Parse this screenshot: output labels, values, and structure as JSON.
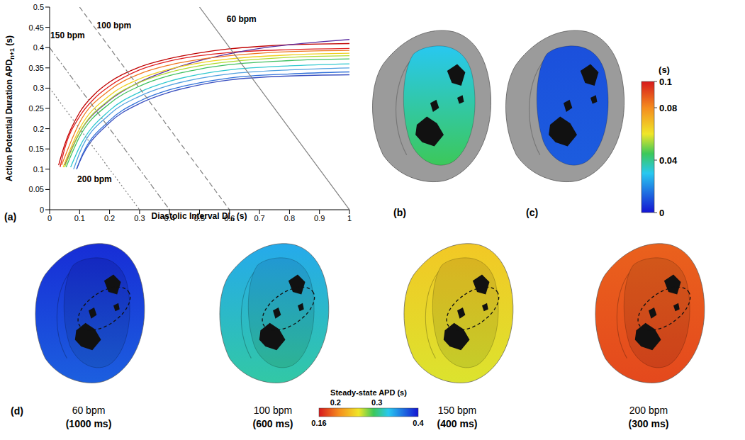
{
  "chart_data": {
    "type": "line",
    "xlabel": {
      "text": "Diastolic Interval DI",
      "sub": "n",
      "after": " (s)"
    },
    "ylabel": {
      "text": "Action Potential Duration APD",
      "sub": "n+1",
      "after": " (s)"
    },
    "xlim": [
      0,
      1
    ],
    "xticks": [
      0,
      0.1,
      0.2,
      0.3,
      0.4,
      0.5,
      0.6,
      0.7,
      0.8,
      0.9,
      1
    ],
    "ylim": [
      0,
      0.5
    ],
    "yticks": [
      0,
      0.05,
      0.1,
      0.15,
      0.2,
      0.25,
      0.3,
      0.35,
      0.4,
      0.45,
      0.5
    ],
    "grid": false,
    "series": [
      {
        "color": "#c00000",
        "line_style": "solid",
        "x": [
          0.03,
          0.05,
          0.1,
          0.15,
          0.2,
          0.3,
          0.4,
          0.5,
          0.6,
          0.7,
          0.8,
          0.9,
          1
        ],
        "values": [
          0.11,
          0.16,
          0.24,
          0.285,
          0.315,
          0.352,
          0.373,
          0.387,
          0.397,
          0.403,
          0.407,
          0.409,
          0.41
        ]
      },
      {
        "color": "#e02020",
        "line_style": "solid",
        "x": [
          0.035,
          0.05,
          0.1,
          0.15,
          0.2,
          0.3,
          0.4,
          0.5,
          0.6,
          0.8,
          1
        ],
        "values": [
          0.105,
          0.15,
          0.23,
          0.275,
          0.305,
          0.345,
          0.367,
          0.38,
          0.388,
          0.395,
          0.398
        ]
      },
      {
        "color": "#5a2ca0",
        "line_style": "solid",
        "x": [
          0.05,
          0.1,
          0.2,
          0.3,
          0.4,
          0.5,
          0.6,
          0.7,
          0.8,
          0.9,
          1
        ],
        "values": [
          0.11,
          0.19,
          0.27,
          0.315,
          0.345,
          0.368,
          0.385,
          0.398,
          0.407,
          0.414,
          0.42
        ]
      },
      {
        "color": "#f07820",
        "line_style": "solid",
        "x": [
          0.04,
          0.1,
          0.2,
          0.3,
          0.4,
          0.5,
          0.6,
          0.8,
          1
        ],
        "values": [
          0.11,
          0.215,
          0.295,
          0.335,
          0.357,
          0.371,
          0.38,
          0.39,
          0.393
        ]
      },
      {
        "color": "#f0d020",
        "line_style": "solid",
        "x": [
          0.045,
          0.1,
          0.2,
          0.3,
          0.4,
          0.5,
          0.6,
          0.8,
          1
        ],
        "values": [
          0.105,
          0.2,
          0.282,
          0.323,
          0.347,
          0.362,
          0.372,
          0.382,
          0.386
        ]
      },
      {
        "color": "#b0dc30",
        "line_style": "solid",
        "x": [
          0.05,
          0.1,
          0.2,
          0.3,
          0.4,
          0.5,
          0.6,
          0.8,
          1
        ],
        "values": [
          0.105,
          0.19,
          0.272,
          0.314,
          0.339,
          0.355,
          0.365,
          0.376,
          0.38
        ]
      },
      {
        "color": "#40c060",
        "line_style": "solid",
        "x": [
          0.055,
          0.1,
          0.2,
          0.3,
          0.4,
          0.5,
          0.6,
          0.8,
          1
        ],
        "values": [
          0.105,
          0.18,
          0.262,
          0.305,
          0.331,
          0.347,
          0.358,
          0.368,
          0.372
        ]
      },
      {
        "color": "#30c8d0",
        "line_style": "solid",
        "x": [
          0.07,
          0.1,
          0.2,
          0.3,
          0.4,
          0.5,
          0.6,
          0.8,
          1
        ],
        "values": [
          0.105,
          0.155,
          0.245,
          0.29,
          0.317,
          0.334,
          0.345,
          0.355,
          0.36
        ]
      },
      {
        "color": "#50a0e0",
        "line_style": "solid",
        "x": [
          0.08,
          0.1,
          0.2,
          0.3,
          0.4,
          0.5,
          0.6,
          0.8,
          1
        ],
        "values": [
          0.1,
          0.14,
          0.235,
          0.28,
          0.307,
          0.324,
          0.335,
          0.345,
          0.35
        ]
      },
      {
        "color": "#3070d8",
        "line_style": "solid",
        "x": [
          0.09,
          0.1,
          0.2,
          0.3,
          0.4,
          0.5,
          0.6,
          0.8,
          1
        ],
        "values": [
          0.1,
          0.12,
          0.22,
          0.268,
          0.296,
          0.313,
          0.325,
          0.335,
          0.34
        ]
      },
      {
        "color": "#3a50c0",
        "line_style": "solid",
        "x": [
          0.09,
          0.1,
          0.2,
          0.3,
          0.4,
          0.5,
          0.6,
          0.8,
          1
        ],
        "values": [
          0.1,
          0.118,
          0.215,
          0.262,
          0.29,
          0.308,
          0.32,
          0.33,
          0.333
        ]
      },
      {
        "color": "#7f7f7f",
        "line_style": "dotted",
        "x": [
          0,
          0.3
        ],
        "values": [
          0.3,
          0
        ]
      },
      {
        "color": "#7f7f7f",
        "line_style": "dashdot",
        "x": [
          0,
          0.4
        ],
        "values": [
          0.4,
          0
        ]
      },
      {
        "color": "#7f7f7f",
        "line_style": "dashed",
        "x": [
          0.1,
          0.6
        ],
        "values": [
          0.5,
          0
        ]
      },
      {
        "color": "#7f7f7f",
        "line_style": "solid",
        "x": [
          0.5,
          1
        ],
        "values": [
          0.5,
          0
        ]
      }
    ],
    "annotations": [
      {
        "text": "60 bpm",
        "x": 0.64,
        "y": 0.47
      },
      {
        "text": "100 bpm",
        "x": 0.215,
        "y": 0.455
      },
      {
        "text": "150 bpm",
        "x": 0.06,
        "y": 0.43
      },
      {
        "text": "200 bpm",
        "x": 0.15,
        "y": 0.075
      }
    ]
  },
  "panels": {
    "a": {
      "label": "(a)"
    },
    "b": {
      "label": "(b)",
      "values": [
        0.03,
        0.045
      ]
    },
    "c": {
      "label": "(c)",
      "values": [
        0.01,
        0.012
      ]
    },
    "bc_colorbar": {
      "unit": "(s)",
      "range": [
        0,
        0.1
      ],
      "ticks": [
        0,
        0.04,
        0.08,
        0.1
      ]
    },
    "d": {
      "label": "(d)",
      "hearts": [
        {
          "rate": "60 bpm",
          "period": "(1000 ms)",
          "values": [
            0.39,
            0.37
          ]
        },
        {
          "rate": "100 bpm",
          "period": "(600 ms)",
          "values": [
            0.34,
            0.31
          ]
        },
        {
          "rate": "150 bpm",
          "period": "(400 ms)",
          "values": [
            0.24,
            0.26
          ]
        },
        {
          "rate": "200 bpm",
          "period": "(300 ms)",
          "values": [
            0.19,
            0.18
          ]
        }
      ],
      "colorbar": {
        "title": "Steady-state APD (s)",
        "range": [
          0.16,
          0.4
        ],
        "ticks": [
          0.16,
          0.2,
          0.3,
          0.4
        ]
      }
    }
  }
}
